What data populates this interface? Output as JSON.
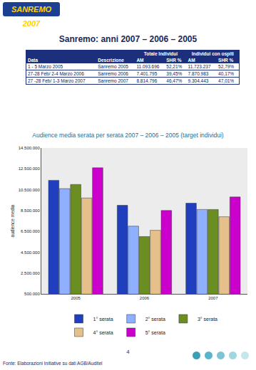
{
  "header": {
    "logo": "SANREMO 2007",
    "title": "Sanremo: anni 2007 – 2006 – 2005"
  },
  "table": {
    "group_headers": [
      "Totale Individui",
      "Individui con ospiti"
    ],
    "columns": [
      "Data",
      "Descrizione",
      "AM",
      "SHR %",
      "AM",
      "SHR %"
    ],
    "rows": [
      [
        "1 - 5 Marzo 2005",
        "Sanremo 2005",
        "11.093.696",
        "52,21%",
        "11.723.237",
        "52,79%"
      ],
      [
        "27-28 Feb/ 2-4 Marzo 2006",
        "Sanremo 2006",
        "7.401.795",
        "39,45%",
        "7.870.983",
        "40,17%"
      ],
      [
        "27 -28 Feb/ 1-3 Marzo 2007",
        "Sanremo 2007",
        "8.814.796",
        "46,47%",
        "9.304.443",
        "47,01%"
      ]
    ]
  },
  "chart_data": {
    "type": "bar",
    "title": "Audience media serata per serata 2007 – 2006 – 2005 (target individui)",
    "y_label": "audience media",
    "categories": [
      "2005",
      "2006",
      "2007"
    ],
    "series": [
      {
        "name": "1° serata",
        "color": "#1f3fbf",
        "values": [
          11400000,
          9000000,
          9200000
        ]
      },
      {
        "name": "2° serata",
        "color": "#8fb0ff",
        "values": [
          10600000,
          7000000,
          8600000
        ]
      },
      {
        "name": "3° serata",
        "color": "#6b8e23",
        "values": [
          11000000,
          6000000,
          8600000
        ]
      },
      {
        "name": "4° serata",
        "color": "#e6c08a",
        "values": [
          9700000,
          6600000,
          7900000
        ]
      },
      {
        "name": "5° serata",
        "color": "#cc00cc",
        "values": [
          12600000,
          8500000,
          9800000
        ]
      }
    ],
    "ylim": [
      500000,
      14500000
    ],
    "yticks": [
      {
        "value": 500000,
        "label": "500.000"
      },
      {
        "value": 2500000,
        "label": "2.500.000"
      },
      {
        "value": 4500000,
        "label": "4.500.000"
      },
      {
        "value": 6500000,
        "label": "6.500.000"
      },
      {
        "value": 8500000,
        "label": "8.500.000"
      },
      {
        "value": 10500000,
        "label": "10.500.000"
      },
      {
        "value": 12500000,
        "label": "12.500.000"
      },
      {
        "value": 14500000,
        "label": "14.500.000"
      }
    ],
    "grid": false,
    "legend": "bottom"
  },
  "footer": {
    "page": "4",
    "source": "Fonte: Elaborazioni Initiative su dati AGB/Auditel"
  }
}
